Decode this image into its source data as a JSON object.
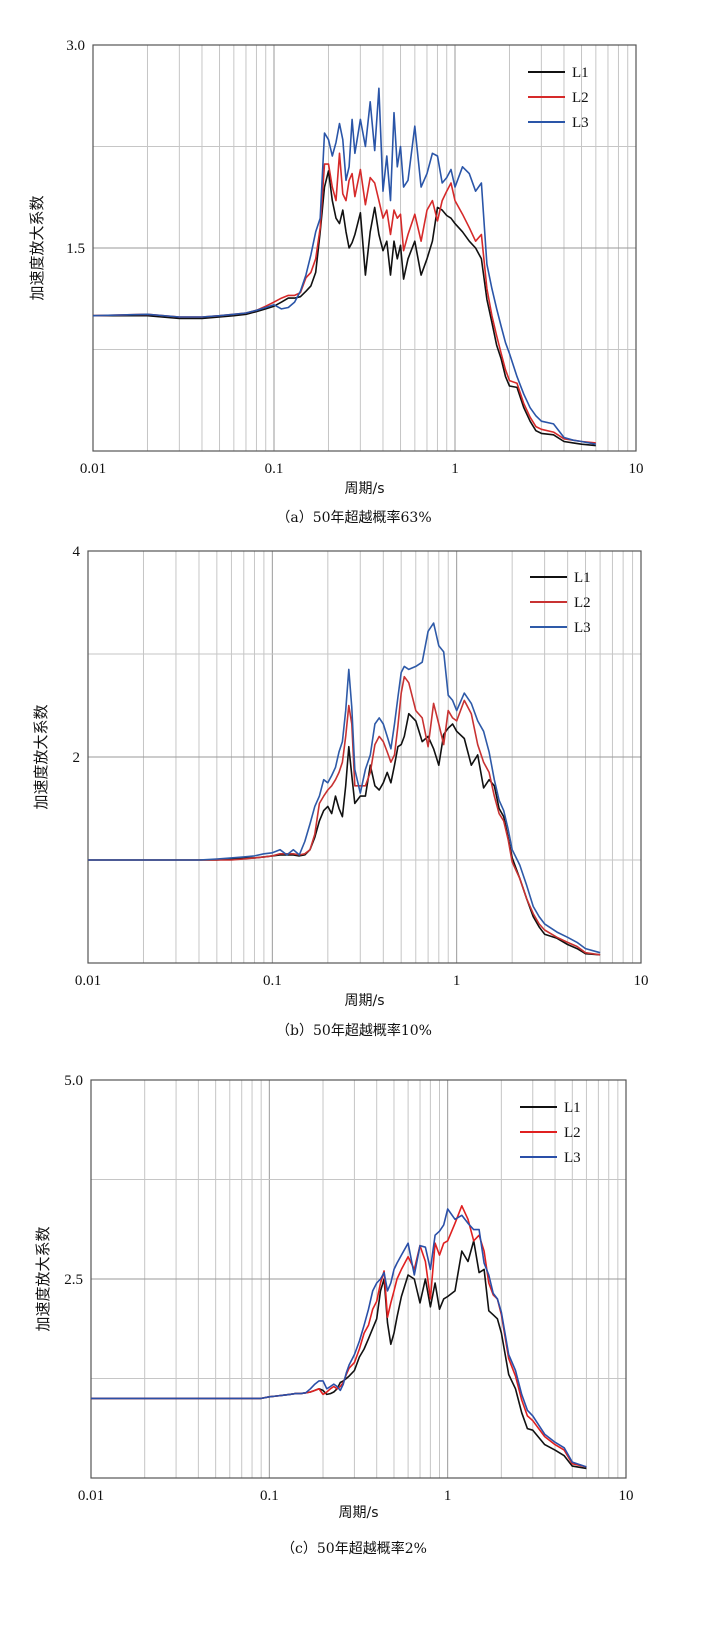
{
  "chart_data": [
    {
      "type": "line",
      "caption": "（a）50年超越概率63%",
      "xlabel": "周期/s",
      "ylabel": "加速度放大系数",
      "x_scale": "log",
      "xlim": [
        0.01,
        10
      ],
      "ylim": [
        0,
        3.0
      ],
      "x_ticks": [
        "0.01",
        "0.1",
        "1",
        "10"
      ],
      "y_ticks": [
        "1.5",
        "3.0"
      ],
      "grid": true,
      "legend": "top-right",
      "x": [
        0.01,
        0.02,
        0.03,
        0.04,
        0.05,
        0.06,
        0.07,
        0.08,
        0.09,
        0.1,
        0.11,
        0.12,
        0.13,
        0.14,
        0.15,
        0.16,
        0.17,
        0.18,
        0.19,
        0.2,
        0.21,
        0.22,
        0.23,
        0.24,
        0.25,
        0.26,
        0.27,
        0.28,
        0.3,
        0.32,
        0.34,
        0.36,
        0.38,
        0.4,
        0.42,
        0.44,
        0.46,
        0.48,
        0.5,
        0.52,
        0.55,
        0.6,
        0.65,
        0.7,
        0.75,
        0.8,
        0.85,
        0.9,
        0.95,
        1.0,
        1.1,
        1.2,
        1.3,
        1.4,
        1.5,
        1.6,
        1.7,
        1.8,
        1.9,
        2.0,
        2.2,
        2.4,
        2.6,
        2.8,
        3.0,
        3.5,
        4.0,
        4.5,
        5.0,
        6.0
      ],
      "series": [
        {
          "name": "L1",
          "color": "#111111",
          "values": [
            1.0,
            1.0,
            0.98,
            0.98,
            0.99,
            1.0,
            1.01,
            1.03,
            1.05,
            1.07,
            1.1,
            1.13,
            1.13,
            1.14,
            1.18,
            1.22,
            1.32,
            1.62,
            1.95,
            2.07,
            1.85,
            1.72,
            1.68,
            1.78,
            1.62,
            1.5,
            1.54,
            1.6,
            1.76,
            1.3,
            1.62,
            1.8,
            1.6,
            1.48,
            1.55,
            1.3,
            1.55,
            1.42,
            1.52,
            1.27,
            1.42,
            1.55,
            1.3,
            1.42,
            1.55,
            1.8,
            1.78,
            1.74,
            1.72,
            1.68,
            1.62,
            1.55,
            1.5,
            1.42,
            1.12,
            0.95,
            0.78,
            0.68,
            0.55,
            0.48,
            0.47,
            0.32,
            0.22,
            0.15,
            0.13,
            0.12,
            0.07,
            0.06,
            0.05,
            0.04
          ]
        },
        {
          "name": "L2",
          "color": "#d62a2a",
          "values": [
            1.0,
            1.01,
            0.99,
            0.99,
            1.0,
            1.01,
            1.02,
            1.04,
            1.07,
            1.1,
            1.13,
            1.15,
            1.15,
            1.17,
            1.28,
            1.32,
            1.42,
            1.65,
            2.12,
            2.12,
            1.95,
            1.85,
            2.2,
            1.9,
            1.85,
            2.0,
            2.05,
            1.88,
            2.08,
            1.82,
            2.02,
            1.98,
            1.85,
            1.72,
            1.78,
            1.6,
            1.78,
            1.72,
            1.75,
            1.48,
            1.6,
            1.75,
            1.55,
            1.78,
            1.85,
            1.7,
            1.85,
            1.92,
            1.98,
            1.85,
            1.75,
            1.65,
            1.55,
            1.6,
            1.2,
            1.0,
            0.85,
            0.72,
            0.6,
            0.52,
            0.5,
            0.35,
            0.25,
            0.18,
            0.16,
            0.14,
            0.09,
            0.08,
            0.07,
            0.06
          ]
        },
        {
          "name": "L3",
          "color": "#2a55a8",
          "values": [
            1.0,
            1.01,
            0.99,
            0.99,
            1.0,
            1.01,
            1.02,
            1.04,
            1.06,
            1.08,
            1.05,
            1.06,
            1.1,
            1.18,
            1.3,
            1.45,
            1.62,
            1.72,
            2.35,
            2.3,
            2.18,
            2.28,
            2.42,
            2.3,
            2.0,
            2.1,
            2.45,
            2.2,
            2.45,
            2.25,
            2.58,
            2.22,
            2.68,
            1.92,
            2.18,
            1.85,
            2.5,
            2.1,
            2.25,
            1.95,
            2.0,
            2.4,
            1.95,
            2.05,
            2.2,
            2.18,
            1.98,
            2.02,
            2.08,
            1.95,
            2.1,
            2.05,
            1.92,
            1.98,
            1.38,
            1.2,
            1.05,
            0.92,
            0.8,
            0.72,
            0.55,
            0.42,
            0.32,
            0.26,
            0.22,
            0.2,
            0.1,
            0.08,
            0.07,
            0.05
          ]
        }
      ]
    },
    {
      "type": "line",
      "caption": "（b）50年超越概率10%",
      "xlabel": "周期/s",
      "ylabel": "加速度放大系数",
      "x_scale": "log",
      "xlim": [
        0.01,
        10
      ],
      "ylim": [
        0,
        4
      ],
      "x_ticks": [
        "0.01",
        "0.1",
        "1",
        "10"
      ],
      "y_ticks": [
        "2",
        "4"
      ],
      "grid": true,
      "legend": "top-right",
      "x": [
        0.01,
        0.02,
        0.03,
        0.04,
        0.05,
        0.06,
        0.07,
        0.08,
        0.09,
        0.1,
        0.11,
        0.12,
        0.13,
        0.14,
        0.15,
        0.16,
        0.17,
        0.18,
        0.19,
        0.2,
        0.21,
        0.22,
        0.23,
        0.24,
        0.25,
        0.26,
        0.27,
        0.28,
        0.3,
        0.32,
        0.34,
        0.36,
        0.38,
        0.4,
        0.42,
        0.44,
        0.46,
        0.48,
        0.5,
        0.52,
        0.55,
        0.6,
        0.65,
        0.7,
        0.75,
        0.8,
        0.85,
        0.9,
        0.95,
        1.0,
        1.1,
        1.2,
        1.3,
        1.4,
        1.5,
        1.6,
        1.7,
        1.8,
        1.9,
        2.0,
        2.2,
        2.4,
        2.6,
        2.8,
        3.0,
        3.5,
        4.0,
        4.5,
        5.0,
        6.0
      ],
      "series": [
        {
          "name": "L1",
          "color": "#111111",
          "values": [
            1.0,
            1.0,
            1.0,
            1.0,
            1.0,
            1.01,
            1.02,
            1.02,
            1.03,
            1.04,
            1.05,
            1.05,
            1.05,
            1.04,
            1.05,
            1.1,
            1.22,
            1.38,
            1.48,
            1.52,
            1.45,
            1.62,
            1.5,
            1.42,
            1.72,
            2.1,
            1.82,
            1.55,
            1.62,
            1.62,
            1.92,
            1.72,
            1.68,
            1.75,
            1.85,
            1.75,
            1.92,
            2.1,
            2.12,
            2.2,
            2.42,
            2.35,
            2.15,
            2.2,
            2.08,
            1.92,
            2.22,
            2.28,
            2.32,
            2.25,
            2.18,
            1.92,
            2.02,
            1.7,
            1.78,
            1.72,
            1.5,
            1.42,
            1.22,
            1.02,
            0.82,
            0.62,
            0.45,
            0.35,
            0.28,
            0.24,
            0.18,
            0.14,
            0.09,
            0.08
          ]
        },
        {
          "name": "L2",
          "color": "#c83232",
          "values": [
            1.0,
            1.0,
            1.0,
            1.0,
            1.0,
            1.0,
            1.01,
            1.02,
            1.03,
            1.04,
            1.06,
            1.06,
            1.06,
            1.05,
            1.06,
            1.1,
            1.25,
            1.55,
            1.62,
            1.68,
            1.72,
            1.78,
            1.85,
            1.95,
            2.2,
            2.5,
            2.32,
            1.72,
            1.72,
            1.72,
            1.85,
            2.12,
            2.2,
            2.15,
            2.05,
            1.95,
            2.02,
            2.3,
            2.62,
            2.78,
            2.72,
            2.45,
            2.38,
            2.1,
            2.52,
            2.32,
            2.12,
            2.45,
            2.38,
            2.35,
            2.55,
            2.42,
            2.12,
            1.95,
            1.85,
            1.62,
            1.45,
            1.38,
            1.2,
            0.98,
            0.82,
            0.62,
            0.48,
            0.38,
            0.32,
            0.25,
            0.2,
            0.16,
            0.1,
            0.08
          ]
        },
        {
          "name": "L3",
          "color": "#2e5aa8",
          "values": [
            1.0,
            1.0,
            1.0,
            1.0,
            1.01,
            1.02,
            1.03,
            1.04,
            1.06,
            1.07,
            1.1,
            1.05,
            1.1,
            1.05,
            1.18,
            1.35,
            1.52,
            1.62,
            1.78,
            1.75,
            1.82,
            1.9,
            2.05,
            2.15,
            2.45,
            2.85,
            2.48,
            1.88,
            1.65,
            1.88,
            2.02,
            2.32,
            2.38,
            2.32,
            2.2,
            2.08,
            2.32,
            2.58,
            2.82,
            2.88,
            2.85,
            2.88,
            2.92,
            3.22,
            3.3,
            3.08,
            3.02,
            2.6,
            2.55,
            2.45,
            2.62,
            2.52,
            2.35,
            2.25,
            2.05,
            1.78,
            1.58,
            1.48,
            1.3,
            1.1,
            0.95,
            0.75,
            0.55,
            0.45,
            0.38,
            0.3,
            0.25,
            0.2,
            0.14,
            0.1
          ]
        }
      ]
    },
    {
      "type": "line",
      "caption": "（c）50年超越概率2%",
      "xlabel": "周期/s",
      "ylabel": "加速度放大系数",
      "x_scale": "log",
      "xlim": [
        0.01,
        10
      ],
      "ylim": [
        0,
        5.0
      ],
      "x_ticks": [
        "0.01",
        "0.1",
        "1",
        "10"
      ],
      "y_ticks": [
        "2.5",
        "5.0"
      ],
      "grid": true,
      "legend": "top-right",
      "x": [
        0.01,
        0.02,
        0.03,
        0.04,
        0.05,
        0.06,
        0.07,
        0.08,
        0.09,
        0.1,
        0.11,
        0.12,
        0.13,
        0.14,
        0.15,
        0.16,
        0.17,
        0.18,
        0.19,
        0.2,
        0.21,
        0.22,
        0.23,
        0.24,
        0.25,
        0.26,
        0.27,
        0.28,
        0.3,
        0.32,
        0.34,
        0.36,
        0.38,
        0.4,
        0.42,
        0.44,
        0.46,
        0.48,
        0.5,
        0.52,
        0.55,
        0.6,
        0.65,
        0.7,
        0.75,
        0.8,
        0.85,
        0.9,
        0.95,
        1.0,
        1.1,
        1.2,
        1.3,
        1.4,
        1.5,
        1.6,
        1.7,
        1.8,
        1.9,
        2.0,
        2.2,
        2.4,
        2.6,
        2.8,
        3.0,
        3.5,
        4.0,
        4.5,
        5.0,
        6.0
      ],
      "series": [
        {
          "name": "L1",
          "color": "#111111",
          "values": [
            1.0,
            1.0,
            1.0,
            1.0,
            1.0,
            1.0,
            1.0,
            1.0,
            1.0,
            1.02,
            1.03,
            1.04,
            1.05,
            1.06,
            1.06,
            1.07,
            1.08,
            1.1,
            1.12,
            1.1,
            1.05,
            1.06,
            1.08,
            1.12,
            1.2,
            1.22,
            1.25,
            1.28,
            1.35,
            1.52,
            1.62,
            1.75,
            1.88,
            2.0,
            2.35,
            2.5,
            1.95,
            1.68,
            1.82,
            2.02,
            2.28,
            2.55,
            2.5,
            2.2,
            2.5,
            2.15,
            2.45,
            2.12,
            2.25,
            2.28,
            2.35,
            2.85,
            2.72,
            2.98,
            2.58,
            2.62,
            2.1,
            2.05,
            2.0,
            1.82,
            1.3,
            1.12,
            0.82,
            0.62,
            0.6,
            0.42,
            0.35,
            0.28,
            0.15,
            0.12
          ]
        },
        {
          "name": "L2",
          "color": "#e02020",
          "values": [
            1.0,
            1.0,
            1.0,
            1.0,
            1.0,
            1.0,
            1.0,
            1.0,
            1.0,
            1.02,
            1.03,
            1.04,
            1.05,
            1.06,
            1.06,
            1.07,
            1.08,
            1.1,
            1.12,
            1.05,
            1.08,
            1.12,
            1.15,
            1.12,
            1.15,
            1.2,
            1.3,
            1.38,
            1.45,
            1.62,
            1.82,
            1.92,
            2.12,
            2.22,
            2.45,
            2.6,
            2.02,
            2.2,
            2.35,
            2.5,
            2.62,
            2.78,
            2.62,
            2.92,
            2.72,
            2.25,
            2.95,
            2.8,
            2.95,
            2.98,
            3.2,
            3.42,
            3.25,
            2.98,
            3.05,
            2.85,
            2.45,
            2.3,
            2.25,
            2.05,
            1.5,
            1.28,
            0.98,
            0.78,
            0.72,
            0.52,
            0.42,
            0.35,
            0.18,
            0.14
          ]
        },
        {
          "name": "L3",
          "color": "#2a4fa8",
          "values": [
            1.0,
            1.0,
            1.0,
            1.0,
            1.0,
            1.0,
            1.0,
            1.0,
            1.0,
            1.02,
            1.03,
            1.04,
            1.05,
            1.06,
            1.06,
            1.07,
            1.12,
            1.18,
            1.22,
            1.22,
            1.12,
            1.15,
            1.18,
            1.15,
            1.1,
            1.18,
            1.32,
            1.42,
            1.55,
            1.72,
            1.92,
            2.12,
            2.35,
            2.45,
            2.5,
            2.58,
            2.35,
            2.45,
            2.62,
            2.7,
            2.8,
            2.95,
            2.55,
            2.92,
            2.9,
            2.62,
            3.05,
            3.1,
            3.18,
            3.38,
            3.25,
            3.3,
            3.2,
            3.12,
            3.12,
            2.7,
            2.55,
            2.32,
            2.25,
            2.08,
            1.55,
            1.35,
            1.05,
            0.85,
            0.78,
            0.55,
            0.45,
            0.38,
            0.2,
            0.14
          ]
        }
      ]
    }
  ]
}
